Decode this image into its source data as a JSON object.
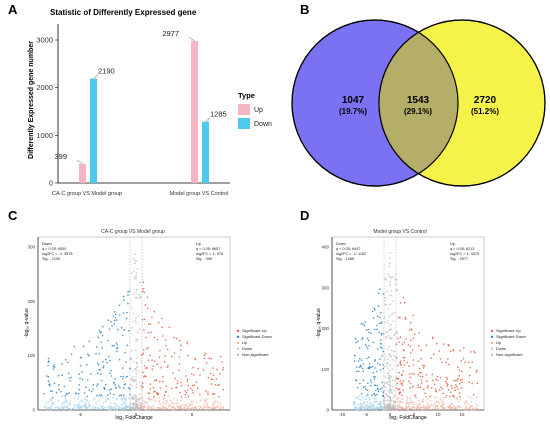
{
  "panels": {
    "a": "A",
    "b": "B",
    "c": "C",
    "d": "D"
  },
  "chart_data": [
    {
      "type": "bar",
      "title": "Statistic of  Differently Expressed gene",
      "ylabel": "Differently Expressed gene number",
      "xlabel": "",
      "categories": [
        "CA-C group VS Model group",
        "Model group VS Control"
      ],
      "series": [
        {
          "name": "Up",
          "values": [
            399,
            2977
          ],
          "color": "#f7b6c6"
        },
        {
          "name": "Down",
          "values": [
            2190,
            1285
          ],
          "color": "#4fc8ef"
        }
      ],
      "ylim": [
        0,
        3000
      ],
      "yticks": [
        0,
        1000,
        2000,
        3000
      ],
      "legend": {
        "title": "Type",
        "placement": "right"
      },
      "grid": false
    },
    {
      "type": "venn",
      "sets": [
        {
          "count": "1047",
          "pct": "(19.7%)",
          "color": "#7a72f2"
        },
        {
          "count": "2720",
          "pct": "(51.2%)",
          "color": "#f5f24a"
        }
      ],
      "intersection": {
        "count": "1543",
        "pct": "(29.1%)",
        "color": "#b4ae68"
      }
    },
    {
      "type": "scatter",
      "title": "CA-C group VS Model group",
      "xlabel": "log₂ FoldChange",
      "ylabel": "-log₁₀ q-value",
      "yticks": [
        "0",
        "100",
        "200",
        "300"
      ],
      "xticks": [
        "-5",
        "0",
        "5"
      ],
      "stats_down": [
        "Down",
        "q < 0.05: 6050",
        "log2FC < -1: 3578",
        "Sig. : 2190"
      ],
      "stats_up": [
        "Up",
        "q < 0.05: 6657",
        "log2FC > 1: 978",
        "Sig. : 399"
      ],
      "legend": [
        "Significant Up",
        "Significant Down",
        "Up",
        "Down",
        "Non-significant"
      ],
      "colors": {
        "sig_up": "#e15b3a",
        "sig_down": "#2f7fbf",
        "up": "#f3b6a5",
        "down": "#a6d4ee",
        "ns": "#bdbdbd"
      }
    },
    {
      "type": "scatter",
      "title": "Model group VS Control",
      "xlabel": "log₂ FoldChange",
      "ylabel": "-log₁₀ q-value",
      "yticks": [
        "0",
        "100",
        "200",
        "300",
        "400"
      ],
      "xticks": [
        "-10",
        "-5",
        "0",
        "5",
        "10",
        "15"
      ],
      "stats_down": [
        "Down",
        "q < 0.05: 6447",
        "log2FC < -1: 1182",
        "Sig. : 1285"
      ],
      "stats_up": [
        "Up",
        "q < 0.05: 6213",
        "log2FC > 1: 4375",
        "Sig. : 2977"
      ],
      "legend": [
        "Significant Up",
        "Significant Down",
        "Up",
        "Down",
        "Non-significant"
      ],
      "colors": {
        "sig_up": "#e15b3a",
        "sig_down": "#2f7fbf",
        "up": "#f3b6a5",
        "down": "#a6d4ee",
        "ns": "#bdbdbd"
      }
    }
  ]
}
